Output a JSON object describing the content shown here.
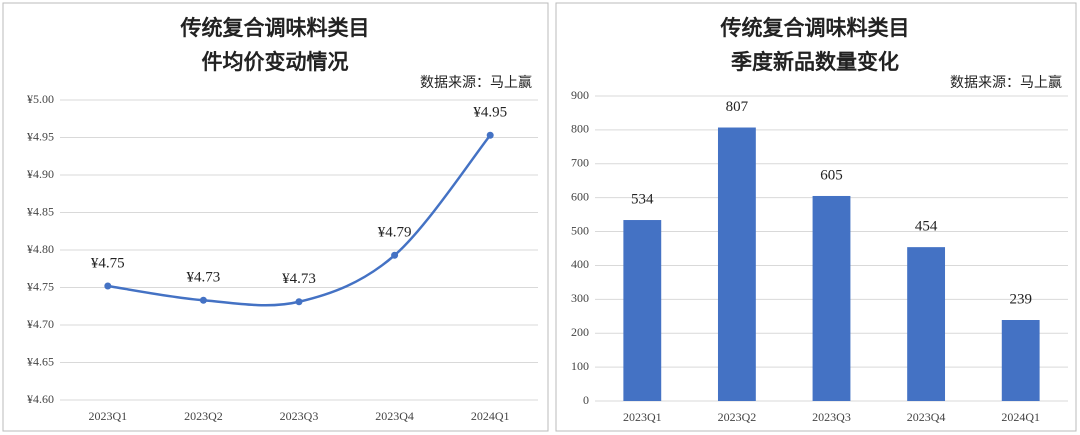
{
  "chart_data": [
    {
      "type": "line",
      "title": [
        "传统复合调味料类目",
        "件均价变动情况"
      ],
      "source": "数据来源：马上赢",
      "categories": [
        "2023Q1",
        "2023Q2",
        "2023Q3",
        "2023Q4",
        "2024Q1"
      ],
      "values": [
        4.752,
        4.733,
        4.731,
        4.793,
        4.953
      ],
      "value_labels": [
        "¥4.75",
        "¥4.73",
        "¥4.73",
        "¥4.79",
        "¥4.95"
      ],
      "color": "#4472c4",
      "grid": true,
      "ylim": [
        4.6,
        5.0
      ],
      "yticks": [
        {
          "value": 4.6,
          "label": "¥4.60"
        },
        {
          "value": 4.65,
          "label": "¥4.65"
        },
        {
          "value": 4.7,
          "label": "¥4.70"
        },
        {
          "value": 4.75,
          "label": "¥4.75"
        },
        {
          "value": 4.8,
          "label": "¥4.80"
        },
        {
          "value": 4.85,
          "label": "¥4.85"
        },
        {
          "value": 4.9,
          "label": "¥4.90"
        },
        {
          "value": 4.95,
          "label": "¥4.95"
        },
        {
          "value": 5.0,
          "label": "¥5.00"
        }
      ]
    },
    {
      "type": "bar",
      "title": [
        "传统复合调味料类目",
        "季度新品数量变化"
      ],
      "source": "数据来源：马上赢",
      "categories": [
        "2023Q1",
        "2023Q2",
        "2023Q3",
        "2023Q4",
        "2024Q1"
      ],
      "values": [
        534,
        807,
        605,
        454,
        239
      ],
      "color": "#4472c4",
      "grid": true,
      "ylim": [
        0,
        900
      ],
      "yticks": [
        0,
        100,
        200,
        300,
        400,
        500,
        600,
        700,
        800,
        900
      ]
    }
  ]
}
